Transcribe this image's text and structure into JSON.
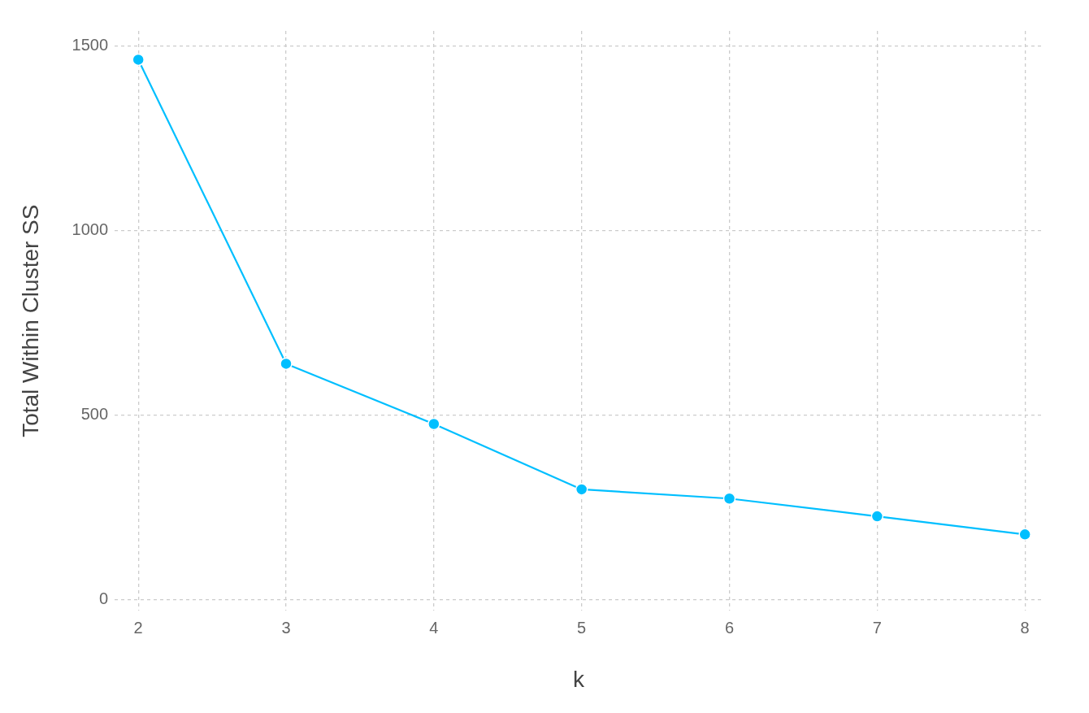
{
  "chart_data": {
    "type": "line",
    "xlabel": "k",
    "ylabel": "Total Within Cluster SS",
    "x": [
      2,
      3,
      4,
      5,
      6,
      7,
      8
    ],
    "values": [
      1462,
      639,
      476,
      299,
      274,
      226,
      177
    ],
    "color": "#00bfff",
    "xlim": [
      1.84,
      8.12
    ],
    "xticks": [
      2,
      3,
      4,
      5,
      6,
      7,
      8
    ],
    "ylim": [
      -30,
      1540
    ],
    "yticks": [
      0,
      500,
      1000,
      1500
    ],
    "grid": true,
    "marker": "circle",
    "line_style": "solid"
  }
}
